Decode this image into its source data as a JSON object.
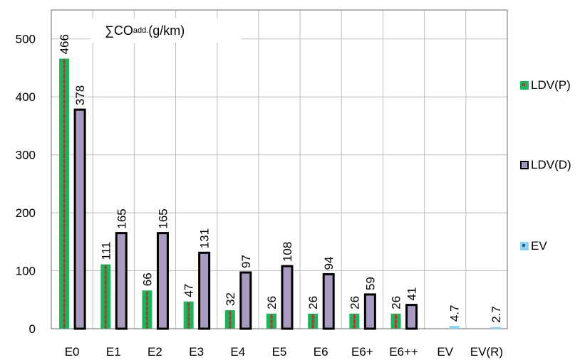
{
  "chart_data": {
    "type": "bar",
    "title_prefix": "∑CO",
    "title_subscript": "add.",
    "title_suffix": " (g/km)",
    "categories": [
      "E0",
      "E1",
      "E2",
      "E3",
      "E4",
      "E5",
      "E6",
      "E6+",
      "E6++",
      "EV",
      "EV(R)"
    ],
    "ylim": [
      0,
      550
    ],
    "yticks": [
      0,
      100,
      200,
      300,
      400,
      500
    ],
    "grid": true,
    "legend_position": "right",
    "series": [
      {
        "name": "LDV(P)",
        "color": "#1fb35a",
        "stripe": "#b03a3a",
        "values": [
          466,
          111,
          66,
          47,
          32,
          26,
          26,
          26,
          26,
          null,
          null
        ],
        "labels": [
          "466",
          "111",
          "66",
          "47",
          "32",
          "26",
          "26",
          "26",
          "26",
          "",
          ""
        ]
      },
      {
        "name": "LDV(D)",
        "color": "#000000",
        "stripe": "#a89bbf",
        "values": [
          378,
          165,
          165,
          131,
          97,
          108,
          94,
          59,
          41,
          null,
          null
        ],
        "labels": [
          "378",
          "165",
          "165",
          "131",
          "97",
          "108",
          "94",
          "59",
          "41",
          "",
          ""
        ]
      },
      {
        "name": "EV",
        "color": "#8fd3f4",
        "stripe": "#2f5597",
        "values": [
          null,
          null,
          null,
          null,
          null,
          null,
          null,
          null,
          null,
          4.7,
          2.7
        ],
        "labels": [
          "",
          "",
          "",
          "",
          "",
          "",
          "",
          "",
          "",
          "4.7",
          "2.7"
        ]
      }
    ]
  }
}
